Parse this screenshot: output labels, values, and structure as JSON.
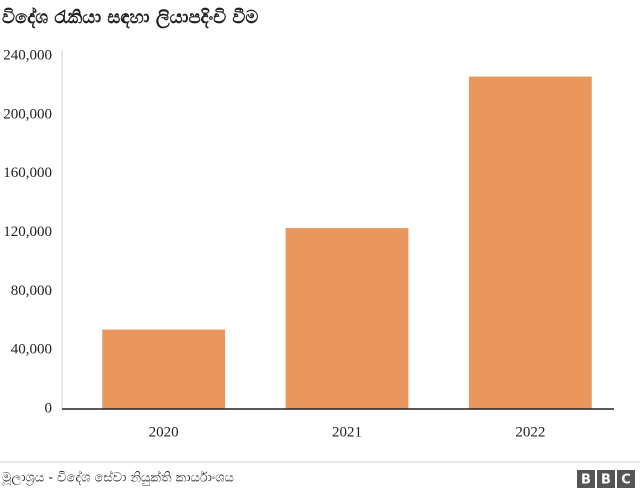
{
  "chart_data": {
    "type": "bar",
    "title": "විදේශ රැකියා සඳහා ලියාපදිංචි වීම",
    "categories": [
      "2020",
      "2021",
      "2022"
    ],
    "values": [
      54000,
      123000,
      226000
    ],
    "color": "#e9975d",
    "ylim": [
      0,
      240000
    ],
    "yticks": [
      0,
      {
        "value": 40000,
        "label": "40,000"
      },
      {
        "value": 80000,
        "label": "80,000"
      },
      {
        "value": 120000,
        "label": "120,000"
      },
      {
        "value": 160000,
        "label": "160,000"
      },
      {
        "value": 200000,
        "label": "200,000"
      },
      {
        "value": 240000,
        "label": "240,000"
      }
    ],
    "grid": false,
    "source": "මූලාශ්‍රය - විදේශ සේවා නියුක්ති කාර්යාංශය",
    "logo": [
      "B",
      "B",
      "C"
    ]
  }
}
